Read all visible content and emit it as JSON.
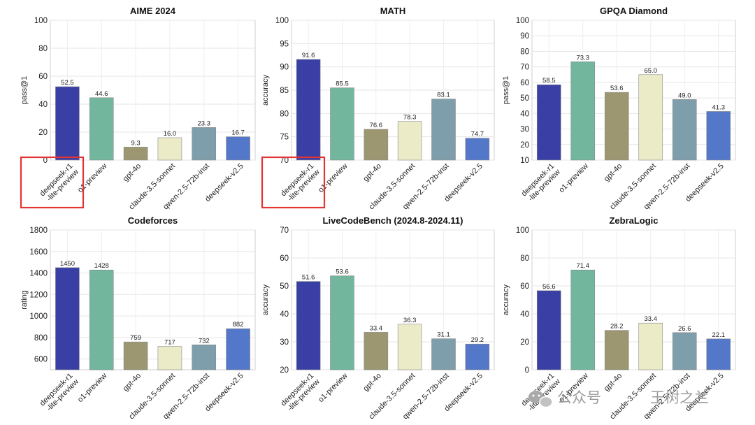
{
  "colors": {
    "deepseek-r1": "#3a3fa5",
    "o1-preview": "#72b79d",
    "gpt-4o": "#9c9770",
    "claude-3.5-sonnet": "#ecebc8",
    "qwen-2.5-72b-inst": "#7e9eab",
    "deepseek-v2.5": "#5377c9",
    "highlight": "#e33333"
  },
  "categories": [
    [
      "deepseek-r1",
      "-lite-preview"
    ],
    [
      "o1-preview"
    ],
    [
      "gpt-4o"
    ],
    [
      "claude-3.5-sonnet"
    ],
    [
      "qwen-2.5-72b-inst"
    ],
    [
      "deepseek-v2.5"
    ]
  ],
  "watermark": {
    "channel": "公众号",
    "author": "王树之兰"
  },
  "chart_data": [
    {
      "type": "bar",
      "title": "AIME 2024",
      "ylabel": "pass@1",
      "ylim": [
        0,
        100
      ],
      "yticks": [
        0,
        20,
        40,
        60,
        80,
        100
      ],
      "values": [
        52.5,
        44.6,
        9.3,
        16.0,
        23.3,
        16.7
      ],
      "labels": [
        "52.5",
        "44.6",
        "9.3",
        "16.0",
        "23.3",
        "16.7"
      ],
      "grid": true,
      "highlight_first": true
    },
    {
      "type": "bar",
      "title": "MATH",
      "ylabel": "accuracy",
      "ylim": [
        70,
        100
      ],
      "yticks": [
        70,
        75,
        80,
        85,
        90,
        95,
        100
      ],
      "values": [
        91.6,
        85.5,
        76.6,
        78.3,
        83.1,
        74.7
      ],
      "labels": [
        "91.6",
        "85.5",
        "76.6",
        "78.3",
        "83.1",
        "74.7"
      ],
      "grid": true,
      "highlight_first": true
    },
    {
      "type": "bar",
      "title": "GPQA Diamond",
      "ylabel": "pass@1",
      "ylim": [
        10,
        100
      ],
      "yticks": [
        10,
        20,
        30,
        40,
        50,
        60,
        70,
        80,
        90,
        100
      ],
      "values": [
        58.5,
        73.3,
        53.6,
        65.0,
        49.0,
        41.3
      ],
      "labels": [
        "58.5",
        "73.3",
        "53.6",
        "65.0",
        "49.0",
        "41.3"
      ],
      "grid": true,
      "highlight_first": false
    },
    {
      "type": "bar",
      "title": "Codeforces",
      "ylabel": "rating",
      "ylim": [
        500,
        1800
      ],
      "yticks": [
        600,
        800,
        1000,
        1200,
        1400,
        1600,
        1800
      ],
      "values": [
        1450,
        1428,
        759,
        717,
        732,
        882
      ],
      "labels": [
        "1450",
        "1428",
        "759",
        "717",
        "732",
        "882"
      ],
      "grid": true,
      "highlight_first": false
    },
    {
      "type": "bar",
      "title": "LiveCodeBench (2024.8-2024.11)",
      "ylabel": "accuracy",
      "ylim": [
        20,
        70
      ],
      "yticks": [
        20,
        30,
        40,
        50,
        60,
        70
      ],
      "values": [
        51.6,
        53.6,
        33.4,
        36.3,
        31.1,
        29.2
      ],
      "labels": [
        "51.6",
        "53.6",
        "33.4",
        "36.3",
        "31.1",
        "29.2"
      ],
      "grid": true,
      "highlight_first": false
    },
    {
      "type": "bar",
      "title": "ZebraLogic",
      "ylabel": "accuracy",
      "ylim": [
        0,
        100
      ],
      "yticks": [
        0,
        20,
        40,
        60,
        80,
        100
      ],
      "values": [
        56.6,
        71.4,
        28.2,
        33.4,
        26.6,
        22.1
      ],
      "labels": [
        "56.6",
        "71.4",
        "28.2",
        "33.4",
        "26.6",
        "22.1"
      ],
      "grid": true,
      "highlight_first": false
    }
  ]
}
